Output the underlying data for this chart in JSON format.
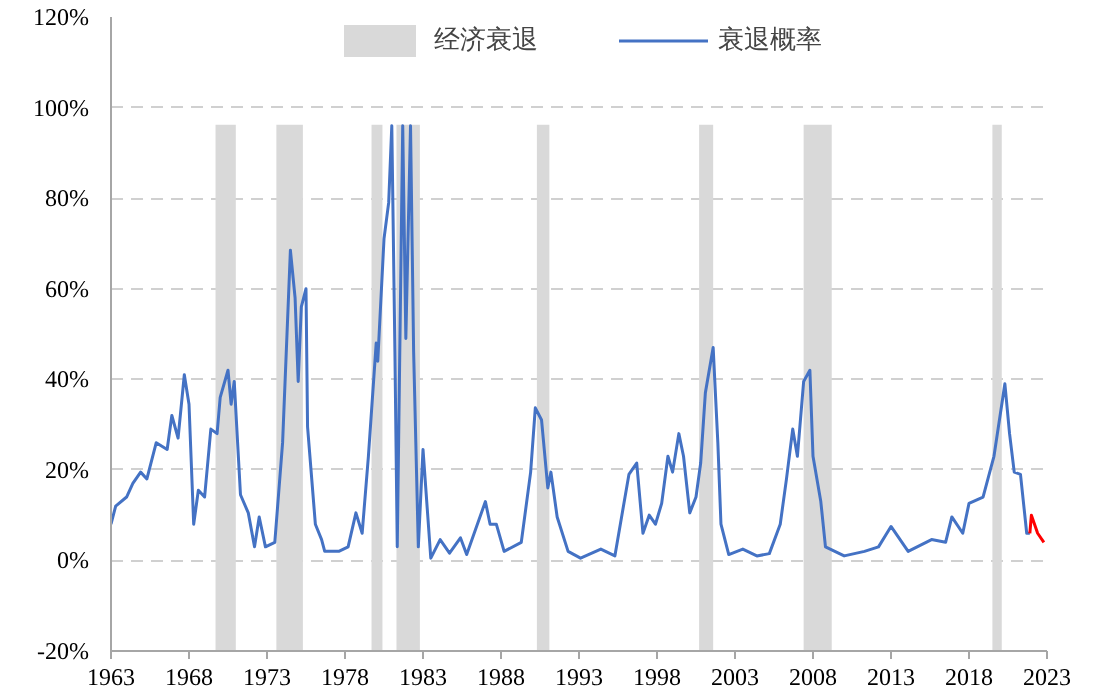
{
  "chart_data": {
    "type": "line",
    "xlim": [
      1963,
      2023
    ],
    "ylim": [
      -20,
      120
    ],
    "xticks": [
      1963,
      1968,
      1973,
      1978,
      1983,
      1988,
      1993,
      1998,
      2003,
      2008,
      2013,
      2018,
      2023
    ],
    "yticks": [
      {
        "value": -20,
        "label": "-20%"
      },
      {
        "value": 0,
        "label": "0%"
      },
      {
        "value": 20,
        "label": "20%"
      },
      {
        "value": 40,
        "label": "40%"
      },
      {
        "value": 60,
        "label": "60%"
      },
      {
        "value": 80,
        "label": "80%"
      },
      {
        "value": 100,
        "label": "100%"
      },
      {
        "value": 120,
        "label": "120%"
      }
    ],
    "grid": "y",
    "legend": "top",
    "line_style": "solid",
    "bands": [
      {
        "axis": "x",
        "from": 1969.7,
        "to": 1971.0,
        "label": "经济衰退",
        "color": "#d9d9d9"
      },
      {
        "axis": "x",
        "from": 1973.6,
        "to": 1975.3,
        "color": "#d9d9d9"
      },
      {
        "axis": "x",
        "from": 1979.7,
        "to": 1980.4,
        "color": "#d9d9d9"
      },
      {
        "axis": "x",
        "from": 1981.3,
        "to": 1982.8,
        "color": "#d9d9d9"
      },
      {
        "axis": "x",
        "from": 1990.3,
        "to": 1991.1,
        "color": "#d9d9d9"
      },
      {
        "axis": "x",
        "from": 2000.7,
        "to": 2001.6,
        "color": "#d9d9d9"
      },
      {
        "axis": "x",
        "from": 2007.4,
        "to": 2009.2,
        "color": "#d9d9d9"
      },
      {
        "axis": "x",
        "from": 2019.5,
        "to": 2020.1,
        "color": "#d9d9d9"
      }
    ],
    "series": [
      {
        "name": "衰退概率",
        "color": "#4472c4",
        "x": [
          1963.0,
          1963.3,
          1964.0,
          1964.4,
          1964.9,
          1965.3,
          1965.9,
          1966.6,
          1966.9,
          1967.3,
          1967.7,
          1968.0,
          1968.3,
          1968.6,
          1969.0,
          1969.4,
          1969.8,
          1970.0,
          1970.5,
          1970.7,
          1970.9,
          1971.3,
          1971.8,
          1972.2,
          1972.5,
          1972.9,
          1973.5,
          1974.0,
          1974.5,
          1974.8,
          1975.0,
          1975.2,
          1975.5,
          1975.6,
          1976.1,
          1976.5,
          1976.7,
          1977.6,
          1978.2,
          1978.7,
          1979.1,
          1979.5,
          1980.0,
          1980.1,
          1980.5,
          1980.8,
          1981.0,
          1981.2,
          1981.35,
          1981.7,
          1981.9,
          1982.2,
          1982.4,
          1982.7,
          1983.0,
          1983.5,
          1984.1,
          1984.7,
          1985.4,
          1985.8,
          1987.0,
          1987.3,
          1987.7,
          1988.2,
          1989.3,
          1989.9,
          1990.2,
          1990.6,
          1991.0,
          1991.2,
          1991.6,
          1992.3,
          1993.1,
          1994.4,
          1995.3,
          1996.2,
          1996.7,
          1997.1,
          1997.5,
          1997.9,
          1998.3,
          1998.7,
          1999.0,
          1999.4,
          1999.7,
          2000.1,
          2000.5,
          2000.8,
          2001.1,
          2001.6,
          2001.9,
          2002.1,
          2002.6,
          2003.5,
          2004.4,
          2005.2,
          2005.9,
          2006.3,
          2006.7,
          2007.0,
          2007.4,
          2007.8,
          2008.0,
          2008.5,
          2008.8,
          2009.4,
          2010.0,
          2011.3,
          2012.2,
          2013.0,
          2014.1,
          2015.6,
          2016.5,
          2016.9,
          2017.6,
          2018.0,
          2018.9,
          2019.6,
          2020.3,
          2020.6,
          2020.9,
          2021.3,
          2021.7,
          2021.9
        ],
        "values": [
          8,
          12,
          14,
          17,
          19.5,
          18,
          26,
          24.5,
          32,
          27,
          41,
          34.5,
          8,
          15.5,
          14,
          29,
          28,
          36,
          42,
          34.5,
          39.5,
          14.5,
          10.5,
          3,
          9.6,
          3,
          4,
          26,
          68.5,
          58,
          39.5,
          56,
          60,
          29.5,
          8,
          4.6,
          2,
          2,
          3,
          10.5,
          6,
          23,
          48,
          44,
          71,
          79,
          96,
          46,
          3,
          96,
          49,
          96,
          46,
          3,
          24.5,
          0.5,
          4.6,
          1.6,
          5,
          1.3,
          13,
          8,
          8,
          2,
          4,
          19.5,
          33.7,
          31,
          16,
          19.5,
          9.6,
          2,
          0.5,
          2.5,
          1,
          19,
          21.5,
          6,
          10,
          8,
          12.6,
          23,
          19.5,
          28,
          23,
          10.5,
          14,
          21.5,
          37,
          47,
          26,
          8,
          1.3,
          2.5,
          1,
          1.5,
          8,
          18,
          29,
          23,
          39.5,
          42,
          23,
          13,
          3,
          2,
          1,
          2,
          3,
          7.5,
          2,
          4.6,
          4,
          9.6,
          6,
          12.6,
          14,
          23,
          39,
          28,
          19.5,
          19,
          6,
          6
        ]
      },
      {
        "color": "#ff0000",
        "x": [
          2021.9,
          2022.0,
          2022.4,
          2022.8
        ],
        "values": [
          6,
          10,
          6,
          4
        ]
      }
    ]
  }
}
